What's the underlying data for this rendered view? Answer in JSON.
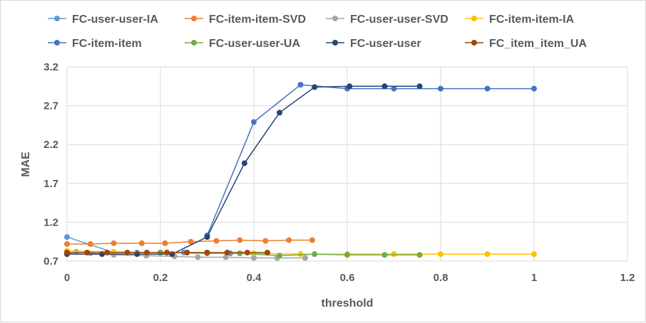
{
  "chart_data": {
    "type": "line",
    "title": "",
    "xlabel": "threshold",
    "ylabel": "MAE",
    "xlim": [
      0,
      1.2
    ],
    "ylim": [
      0.7,
      3.2
    ],
    "x_ticks": [
      "0",
      "0.2",
      "0.4",
      "0.6",
      "0.8",
      "1",
      "1.2"
    ],
    "y_ticks": [
      "0.7",
      "1.2",
      "1.7",
      "2.2",
      "2.7",
      "3.2"
    ],
    "grid": "vertical and horizontal",
    "legend": "top",
    "series": [
      {
        "name": "FC-user-user-IA",
        "color": "#5b9bd5",
        "x": [
          0,
          0.1,
          0.15,
          0.2,
          0.25,
          0.3,
          0.35,
          0.37
        ],
        "y": [
          1.01,
          0.81,
          0.81,
          0.81,
          0.81,
          0.81,
          0.8,
          0.8
        ]
      },
      {
        "name": "FC-item-item-SVD",
        "color": "#ed7d31",
        "x": [
          0,
          0.05,
          0.1,
          0.16,
          0.21,
          0.265,
          0.32,
          0.37,
          0.425,
          0.475,
          0.525
        ],
        "y": [
          0.92,
          0.92,
          0.93,
          0.93,
          0.93,
          0.95,
          0.96,
          0.97,
          0.96,
          0.97,
          0.97
        ]
      },
      {
        "name": "FC-user-user-SVD",
        "color": "#a5a5a5",
        "x": [
          0,
          0.02,
          0.05,
          0.1,
          0.17,
          0.23,
          0.28,
          0.34,
          0.4,
          0.45,
          0.51
        ],
        "y": [
          0.79,
          0.82,
          0.8,
          0.78,
          0.77,
          0.76,
          0.75,
          0.75,
          0.74,
          0.74,
          0.74
        ]
      },
      {
        "name": "FC-item-item-IA",
        "color": "#ffc000",
        "x": [
          0,
          0.1,
          0.2,
          0.3,
          0.4,
          0.5,
          0.6,
          0.7,
          0.8,
          0.9,
          1.0
        ],
        "y": [
          0.83,
          0.82,
          0.81,
          0.81,
          0.8,
          0.79,
          0.79,
          0.79,
          0.79,
          0.79,
          0.79
        ]
      },
      {
        "name": "FC-item-item",
        "color": "#4472c4",
        "x": [
          0.3,
          0.4,
          0.5,
          0.6,
          0.7,
          0.8,
          0.9,
          1.0
        ],
        "y": [
          1.03,
          2.49,
          2.97,
          2.92,
          2.92,
          2.92,
          2.92,
          2.92
        ]
      },
      {
        "name": "FC-user-user-UA",
        "color": "#70ad47",
        "x": [
          0.2,
          0.3,
          0.37,
          0.455,
          0.53,
          0.6,
          0.68,
          0.755
        ],
        "y": [
          0.81,
          0.8,
          0.8,
          0.77,
          0.79,
          0.78,
          0.78,
          0.78
        ]
      },
      {
        "name": "FC-user-user",
        "color": "#264478",
        "x": [
          0,
          0.075,
          0.15,
          0.225,
          0.3,
          0.38,
          0.455,
          0.53,
          0.605,
          0.68,
          0.755
        ],
        "y": [
          0.79,
          0.79,
          0.79,
          0.79,
          1.01,
          1.96,
          2.61,
          2.94,
          2.95,
          2.95,
          2.95
        ]
      },
      {
        "name": "FC_item_item_UA",
        "color": "#9e480e",
        "x": [
          0,
          0.043,
          0.086,
          0.129,
          0.171,
          0.214,
          0.257,
          0.3,
          0.343,
          0.386,
          0.429
        ],
        "y": [
          0.81,
          0.81,
          0.81,
          0.81,
          0.81,
          0.81,
          0.81,
          0.81,
          0.81,
          0.81,
          0.81
        ]
      }
    ]
  }
}
